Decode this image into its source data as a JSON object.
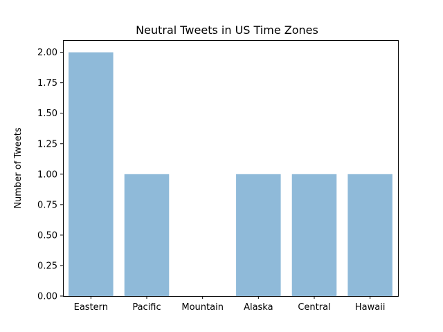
{
  "chart_data": {
    "type": "bar",
    "title": "Neutral Tweets in US Time Zones",
    "xlabel": "",
    "ylabel": "Number of Tweets",
    "categories": [
      "Eastern",
      "Pacific",
      "Mountain",
      "Alaska",
      "Central",
      "Hawaii"
    ],
    "values": [
      2,
      1,
      0,
      1,
      1,
      1
    ],
    "ylim": [
      0,
      2.1
    ],
    "yticks": [
      "0.00",
      "0.25",
      "0.50",
      "0.75",
      "1.00",
      "1.25",
      "1.50",
      "1.75",
      "2.00"
    ],
    "grid": false,
    "colors": {
      "bar": "#8fbad9",
      "axis": "#000000"
    }
  }
}
